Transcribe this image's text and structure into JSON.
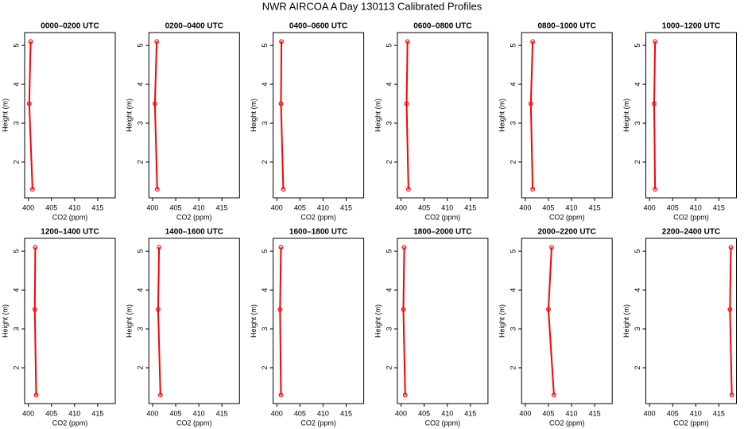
{
  "title": "NWR AIRCOA A  Day 130113  Calibrated Profiles",
  "chart_data": [
    {
      "type": "line",
      "title": "0000–0200 UTC",
      "xlabel": "CO2 (ppm)",
      "ylabel": "Height (m)",
      "color": "#ff0000",
      "x": [
        400.9,
        400.2,
        400.5
      ],
      "values": [
        1.3,
        3.5,
        5.1
      ],
      "xlim": [
        399.2,
        418.8
      ],
      "ylim": [
        1.08,
        5.33
      ],
      "xticks": [
        400,
        405,
        410,
        415
      ],
      "yticks": [
        2,
        3,
        4,
        5
      ]
    },
    {
      "type": "line",
      "title": "0200–0400 UTC",
      "xlabel": "CO2 (ppm)",
      "ylabel": "Height (m)",
      "color": "#ff0000",
      "x": [
        401.0,
        400.5,
        400.9
      ],
      "values": [
        1.3,
        3.5,
        5.1
      ],
      "xlim": [
        399.2,
        418.8
      ],
      "ylim": [
        1.08,
        5.33
      ],
      "xticks": [
        400,
        405,
        410,
        415
      ],
      "yticks": [
        2,
        3,
        4,
        5
      ]
    },
    {
      "type": "line",
      "title": "0400–0600 UTC",
      "xlabel": "CO2 (ppm)",
      "ylabel": "Height (m)",
      "color": "#ff0000",
      "x": [
        401.4,
        400.9,
        401.0
      ],
      "values": [
        1.3,
        3.5,
        5.1
      ],
      "xlim": [
        399.2,
        418.8
      ],
      "ylim": [
        1.08,
        5.33
      ],
      "xticks": [
        400,
        405,
        410,
        415
      ],
      "yticks": [
        2,
        3,
        4,
        5
      ]
    },
    {
      "type": "line",
      "title": "0600–0800 UTC",
      "xlabel": "CO2 (ppm)",
      "ylabel": "Height (m)",
      "color": "#ff0000",
      "x": [
        401.6,
        401.2,
        401.4
      ],
      "values": [
        1.3,
        3.5,
        5.1
      ],
      "xlim": [
        399.2,
        418.8
      ],
      "ylim": [
        1.08,
        5.33
      ],
      "xticks": [
        400,
        405,
        410,
        415
      ],
      "yticks": [
        2,
        3,
        4,
        5
      ]
    },
    {
      "type": "line",
      "title": "0800–1000 UTC",
      "xlabel": "CO2 (ppm)",
      "ylabel": "Height (m)",
      "color": "#ff0000",
      "x": [
        401.6,
        401.2,
        401.6
      ],
      "values": [
        1.3,
        3.5,
        5.1
      ],
      "xlim": [
        399.2,
        418.8
      ],
      "ylim": [
        1.08,
        5.33
      ],
      "xticks": [
        400,
        405,
        410,
        415
      ],
      "yticks": [
        2,
        3,
        4,
        5
      ]
    },
    {
      "type": "line",
      "title": "1000–1200 UTC",
      "xlabel": "CO2 (ppm)",
      "ylabel": "Height (m)",
      "color": "#ff0000",
      "x": [
        401.2,
        401.0,
        401.2
      ],
      "values": [
        1.3,
        3.5,
        5.1
      ],
      "xlim": [
        399.2,
        418.8
      ],
      "ylim": [
        1.08,
        5.33
      ],
      "xticks": [
        400,
        405,
        410,
        415
      ],
      "yticks": [
        2,
        3,
        4,
        5
      ]
    },
    {
      "type": "line",
      "title": "1200–1400 UTC",
      "xlabel": "CO2 (ppm)",
      "ylabel": "Height (m)",
      "color": "#ff0000",
      "x": [
        401.7,
        401.4,
        401.5
      ],
      "values": [
        1.3,
        3.5,
        5.1
      ],
      "xlim": [
        399.2,
        418.8
      ],
      "ylim": [
        1.08,
        5.33
      ],
      "xticks": [
        400,
        405,
        410,
        415
      ],
      "yticks": [
        2,
        3,
        4,
        5
      ]
    },
    {
      "type": "line",
      "title": "1400–1600 UTC",
      "xlabel": "CO2 (ppm)",
      "ylabel": "Height (m)",
      "color": "#ff0000",
      "x": [
        401.7,
        401.2,
        401.4
      ],
      "values": [
        1.3,
        3.5,
        5.1
      ],
      "xlim": [
        399.2,
        418.8
      ],
      "ylim": [
        1.08,
        5.33
      ],
      "xticks": [
        400,
        405,
        410,
        415
      ],
      "yticks": [
        2,
        3,
        4,
        5
      ]
    },
    {
      "type": "line",
      "title": "1600–1800 UTC",
      "xlabel": "CO2 (ppm)",
      "ylabel": "Height (m)",
      "color": "#ff0000",
      "x": [
        400.9,
        400.7,
        400.9
      ],
      "values": [
        1.3,
        3.5,
        5.1
      ],
      "xlim": [
        399.2,
        418.8
      ],
      "ylim": [
        1.08,
        5.33
      ],
      "xticks": [
        400,
        405,
        410,
        415
      ],
      "yticks": [
        2,
        3,
        4,
        5
      ]
    },
    {
      "type": "line",
      "title": "1800–2000 UTC",
      "xlabel": "CO2 (ppm)",
      "ylabel": "Height (m)",
      "color": "#ff0000",
      "x": [
        400.9,
        400.5,
        400.7
      ],
      "values": [
        1.3,
        3.5,
        5.1
      ],
      "xlim": [
        399.2,
        418.8
      ],
      "ylim": [
        1.08,
        5.33
      ],
      "xticks": [
        400,
        405,
        410,
        415
      ],
      "yticks": [
        2,
        3,
        4,
        5
      ]
    },
    {
      "type": "line",
      "title": "2000–2200 UTC",
      "xlabel": "CO2 (ppm)",
      "ylabel": "Height (m)",
      "color": "#ff0000",
      "x": [
        406.2,
        405.0,
        405.7
      ],
      "values": [
        1.3,
        3.5,
        5.1
      ],
      "xlim": [
        399.2,
        418.8
      ],
      "ylim": [
        1.08,
        5.33
      ],
      "xticks": [
        400,
        405,
        410,
        415
      ],
      "yticks": [
        2,
        3,
        4,
        5
      ]
    },
    {
      "type": "line",
      "title": "2200–2400 UTC",
      "xlabel": "CO2 (ppm)",
      "ylabel": "Height (m)",
      "color": "#ff0000",
      "x": [
        417.8,
        417.4,
        417.6
      ],
      "values": [
        1.3,
        3.5,
        5.1
      ],
      "xlim": [
        399.2,
        418.8
      ],
      "ylim": [
        1.08,
        5.33
      ],
      "xticks": [
        400,
        405,
        410,
        415
      ],
      "yticks": [
        2,
        3,
        4,
        5
      ]
    }
  ]
}
